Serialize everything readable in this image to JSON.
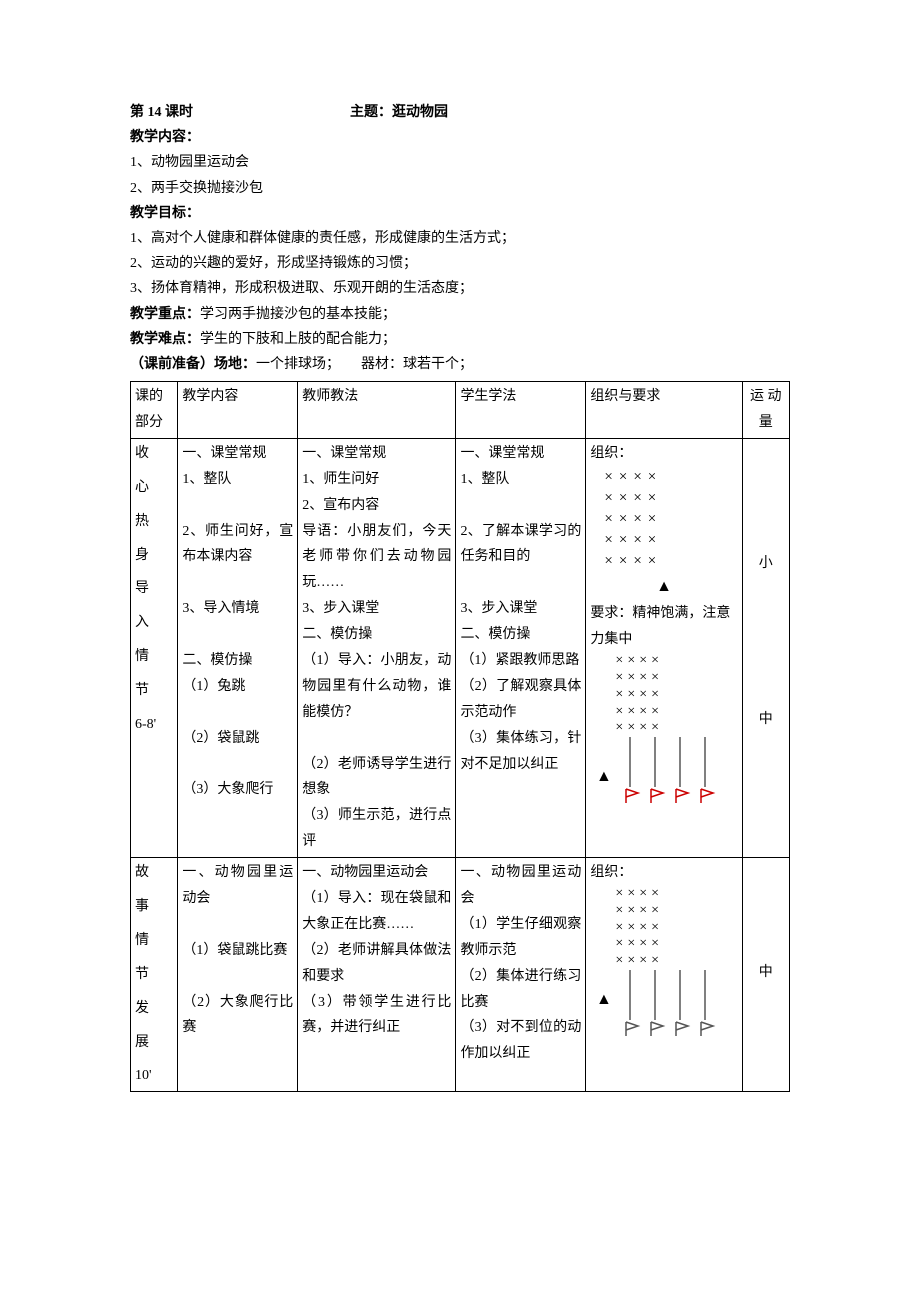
{
  "header": {
    "lesson": "第 14 课时",
    "topic_label": "主题：",
    "topic": "逛动物园"
  },
  "sections": {
    "content_label": "教学内容：",
    "content_1": "1、动物园里运动会",
    "content_2": "2、两手交换抛接沙包",
    "goals_label": "教学目标：",
    "goal_1": "1、高对个人健康和群体健康的责任感，形成健康的生活方式；",
    "goal_2": "2、运动的兴趣的爱好，形成坚持锻炼的习惯；",
    "goal_3": "3、扬体育精神，形成积极进取、乐观开朗的生活态度；",
    "keypoint_label": "教学重点：",
    "keypoint": "学习两手抛接沙包的基本技能；",
    "difficulty_label": "教学难点：",
    "difficulty": "学生的下肢和上肢的配合能力；",
    "prep_label": "（课前准备）场地：",
    "prep_field": "一个排球场；",
    "equip_label": "器材：",
    "equip": "球若干个；"
  },
  "table": {
    "headers": {
      "part": "课的部分",
      "content": "教学内容",
      "teach": "教师教法",
      "learn": "学生学法",
      "org": "组织与要求",
      "load": "运 动量"
    },
    "row1": {
      "part_lines": [
        "收",
        "心",
        "热",
        "身",
        "导",
        "入",
        "情",
        "节",
        "6-8'"
      ],
      "content": "一、课堂常规\n1、整队\n\n2、师生问好，宣布本课内容\n\n3、导入情境\n\n二、模仿操\n（1）兔跳\n\n（2）袋鼠跳\n\n（3）大象爬行",
      "teach": "一、课堂常规\n1、师生问好\n2、宣布内容\n导语：小朋友们，今天老师带你们去动物园玩……\n3、步入课堂\n二、模仿操\n（1）导入：小朋友，动物园里有什么动物，谁能模仿？\n\n（2）老师诱导学生进行想象\n（3）师生示范，进行点评",
      "learn": "一、课堂常规\n1、整队\n\n2、了解本课学习的任务和目的\n\n3、步入课堂\n二、模仿操\n（1）紧跟教师思路\n（2）了解观察具体示范动作\n（3）集体练习，针对不足加以纠正",
      "org_label": "组织：",
      "org_req": "要求：精神饱满，注意力集中",
      "load_1": "小",
      "load_2": "中"
    },
    "row2": {
      "part_lines": [
        "故",
        "事",
        "情",
        "节",
        "发",
        "展",
        "10'"
      ],
      "content": "一、动物园里运动会\n\n（1）袋鼠跳比赛\n\n（2）大象爬行比赛",
      "teach": "一、动物园里运动会\n（1）导入：现在袋鼠和大象正在比赛……\n（2）老师讲解具体做法和要求\n（3）带领学生进行比赛，并进行纠正",
      "learn": "一、动物园里运动会\n（1）学生仔细观察教师示范\n（2）集体进行练习比赛\n（3）对不到位的动作加以纠正",
      "org_label": "组织：",
      "load": "中"
    }
  },
  "style": {
    "x_color": "#000000",
    "flag_color": "#cc0000",
    "flag_color2": "#555555"
  }
}
